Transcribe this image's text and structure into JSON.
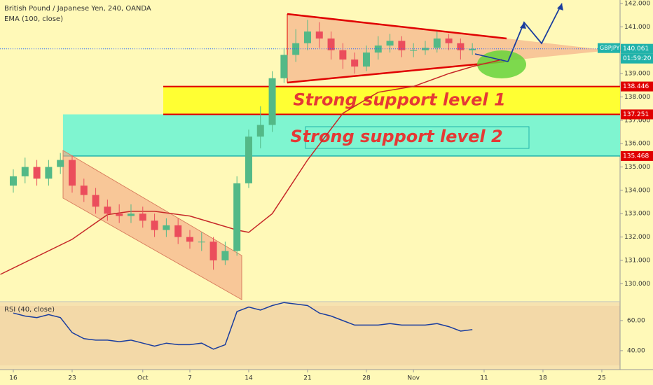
{
  "chart_data": {
    "type": "candlestick",
    "title": "British Pound / Japanese Yen, 240, OANDA",
    "indicator_label": "EMA (100, close)",
    "symbol": "GBPJPY",
    "countdown": "01:59:20",
    "last_price": 140.061,
    "levels": [
      138.446,
      137.251,
      135.468
    ],
    "annotations": [
      "Strong support level 1",
      "Strong support level 2"
    ],
    "up_color": "#53b987",
    "down_color": "#eb4d5c",
    "grid": false,
    "xlim": [
      -1.13,
      51.55
    ],
    "xticks": [
      {
        "value": 0,
        "label": "16"
      },
      {
        "value": 5,
        "label": "23"
      },
      {
        "value": 11,
        "label": "Oct"
      },
      {
        "value": 15,
        "label": "7"
      },
      {
        "value": 20,
        "label": "14"
      },
      {
        "value": 25,
        "label": "21"
      },
      {
        "value": 30,
        "label": "28"
      },
      {
        "value": 34,
        "label": "Nov"
      },
      {
        "value": 40,
        "label": "11"
      },
      {
        "value": 45,
        "label": "18"
      },
      {
        "value": 50,
        "label": "25"
      }
    ],
    "ylim": [
      129.32,
      142.15
    ],
    "yticks": [
      {
        "value": 130,
        "label": "130.000"
      },
      {
        "value": 131,
        "label": "131.000"
      },
      {
        "value": 132,
        "label": "132.000"
      },
      {
        "value": 133,
        "label": "133.000"
      },
      {
        "value": 134,
        "label": "134.000"
      },
      {
        "value": 135,
        "label": "135.000"
      },
      {
        "value": 136,
        "label": "136.000"
      },
      {
        "value": 137,
        "label": "137.000"
      },
      {
        "value": 138,
        "label": "138.000"
      },
      {
        "value": 139,
        "label": "139.000"
      },
      {
        "value": 140,
        "label": "140.000"
      },
      {
        "value": 141,
        "label": "141.000"
      },
      {
        "value": 142,
        "label": "142.000"
      }
    ],
    "x": [
      0,
      1,
      2,
      3,
      4,
      5,
      6,
      7,
      8,
      9,
      10,
      11,
      12,
      13,
      14,
      15,
      16,
      17,
      18,
      19,
      20,
      21,
      22,
      23,
      24,
      25,
      26,
      27,
      28,
      29,
      30,
      31,
      32,
      33,
      34,
      35,
      36,
      37,
      38,
      39
    ],
    "open": [
      134.2,
      134.6,
      135.0,
      134.5,
      135.0,
      135.3,
      134.2,
      133.8,
      133.3,
      133.0,
      132.9,
      133.0,
      132.7,
      132.3,
      132.5,
      132.0,
      131.8,
      131.8,
      131.0,
      131.4,
      134.3,
      136.3,
      136.8,
      138.8,
      139.8,
      140.3,
      140.8,
      140.5,
      140.0,
      139.6,
      139.3,
      139.9,
      140.2,
      140.4,
      140.0,
      140.0,
      140.1,
      140.5,
      140.3,
      140.0
    ],
    "high": [
      134.9,
      135.4,
      135.3,
      135.3,
      135.6,
      135.5,
      134.5,
      134.1,
      133.6,
      133.4,
      133.4,
      133.3,
      133.0,
      132.8,
      132.8,
      132.3,
      132.2,
      132.0,
      131.8,
      134.6,
      136.6,
      137.6,
      139.1,
      140.1,
      140.9,
      141.3,
      141.2,
      140.8,
      140.3,
      139.9,
      140.2,
      140.6,
      140.7,
      140.6,
      140.3,
      140.4,
      140.8,
      140.7,
      140.5,
      140.3
    ],
    "low": [
      133.9,
      134.3,
      134.2,
      134.2,
      134.7,
      133.9,
      133.5,
      133.0,
      132.7,
      132.6,
      132.6,
      132.4,
      132.0,
      132.0,
      131.7,
      131.5,
      131.4,
      130.6,
      130.8,
      131.2,
      134.1,
      135.8,
      136.5,
      138.6,
      139.5,
      140.0,
      140.1,
      139.6,
      139.2,
      139.0,
      139.1,
      139.6,
      139.9,
      139.7,
      139.7,
      139.8,
      139.9,
      140.0,
      139.6,
      139.8
    ],
    "close": [
      134.6,
      135.0,
      134.5,
      135.0,
      135.3,
      134.2,
      133.8,
      133.3,
      133.0,
      132.9,
      133.0,
      132.7,
      132.3,
      132.5,
      132.0,
      131.8,
      131.8,
      131.0,
      131.4,
      134.3,
      136.3,
      136.8,
      138.8,
      139.8,
      140.3,
      140.8,
      140.5,
      140.0,
      139.6,
      139.3,
      139.9,
      140.2,
      140.4,
      140.0,
      140.0,
      140.1,
      140.5,
      140.3,
      140.0,
      140.06
    ],
    "ema": {
      "color": "#c62828",
      "x": [
        -1.1,
        5,
        8,
        10,
        12,
        15,
        19,
        20,
        22,
        25,
        28,
        31,
        34,
        37,
        39,
        41.5
      ],
      "values": [
        130.4,
        131.9,
        132.96,
        133.1,
        133.1,
        132.9,
        132.3,
        132.2,
        133.0,
        135.3,
        137.3,
        138.2,
        138.45,
        139.0,
        139.3,
        139.6
      ]
    },
    "rsi": {
      "label": "RSI (40, close)",
      "color": "#1a3d9e",
      "ylim": [
        28.8,
        72.1
      ],
      "yticks": [
        {
          "value": 40,
          "label": "40.00"
        },
        {
          "value": 60,
          "label": "60.00"
        }
      ],
      "values": [
        65,
        63,
        62,
        64,
        62,
        52,
        48,
        47,
        47,
        46,
        47,
        45,
        43,
        45,
        44,
        44,
        45,
        41,
        44,
        66,
        69,
        67,
        70,
        72,
        71,
        70,
        65,
        63,
        60,
        57,
        57,
        57,
        58,
        57,
        57,
        57,
        58,
        56,
        53,
        54
      ]
    }
  }
}
